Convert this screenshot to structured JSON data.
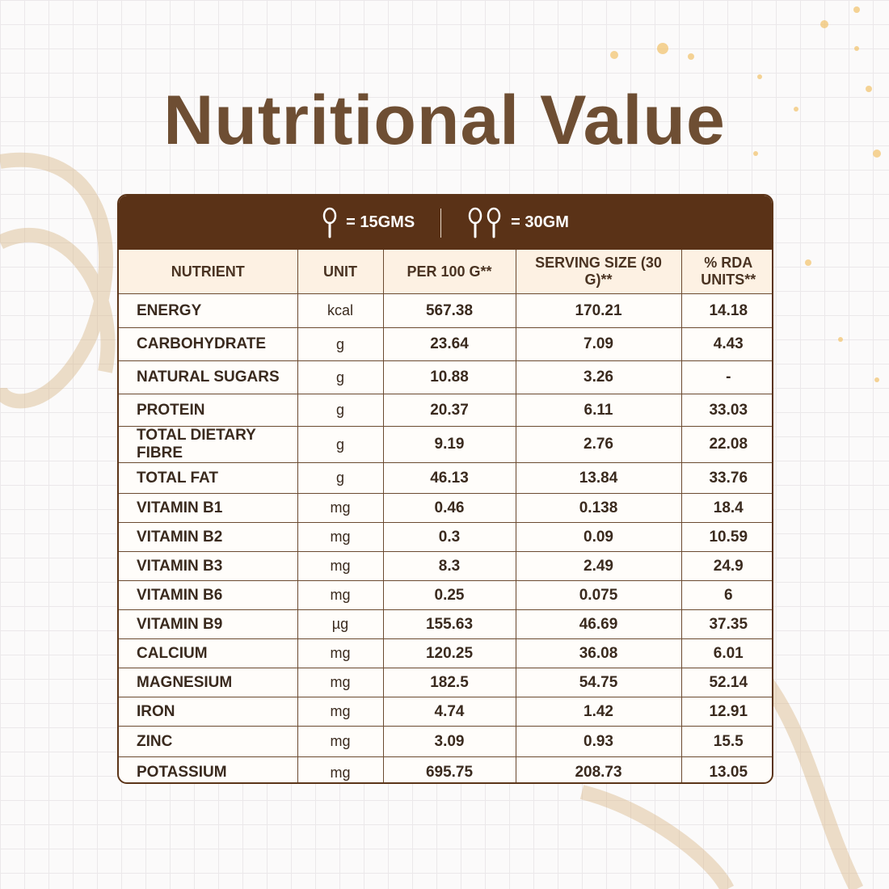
{
  "title": "Nutritional Value",
  "header": {
    "single_spoon": "= 15GMS",
    "double_spoon": "= 30GM"
  },
  "table": {
    "columns": [
      "NUTRIENT",
      "UNIT",
      "PER 100 G**",
      "SERVING SIZE (30 G)**",
      "% RDA UNITS**"
    ],
    "rows": [
      [
        "ENERGY",
        "kcal",
        "567.38",
        "170.21",
        "14.18"
      ],
      [
        "CARBOHYDRATE",
        "g",
        "23.64",
        "7.09",
        "4.43"
      ],
      [
        "NATURAL SUGARS",
        "g",
        "10.88",
        "3.26",
        "-"
      ],
      [
        "PROTEIN",
        "g",
        "20.37",
        "6.11",
        "33.03"
      ],
      [
        "TOTAL DIETARY FIBRE",
        "g",
        "9.19",
        "2.76",
        "22.08"
      ],
      [
        "TOTAL FAT",
        "g",
        "46.13",
        "13.84",
        "33.76"
      ],
      [
        "VITAMIN B1",
        "mg",
        "0.46",
        "0.138",
        "18.4"
      ],
      [
        "VITAMIN B2",
        "mg",
        "0.3",
        "0.09",
        "10.59"
      ],
      [
        "VITAMIN B3",
        "mg",
        "8.3",
        "2.49",
        "24.9"
      ],
      [
        "VITAMIN B6",
        "mg",
        "0.25",
        "0.075",
        "6"
      ],
      [
        "VITAMIN B9",
        "µg",
        "155.63",
        "46.69",
        "37.35"
      ],
      [
        "CALCIUM",
        "mg",
        "120.25",
        "36.08",
        "6.01"
      ],
      [
        "MAGNESIUM",
        "mg",
        "182.5",
        "54.75",
        "52.14"
      ],
      [
        "IRON",
        "mg",
        "4.74",
        "1.42",
        "12.91"
      ],
      [
        "ZINC",
        "mg",
        "3.09",
        "0.93",
        "15.5"
      ],
      [
        "POTASSIUM",
        "mg",
        "695.75",
        "208.73",
        "13.05"
      ]
    ]
  }
}
